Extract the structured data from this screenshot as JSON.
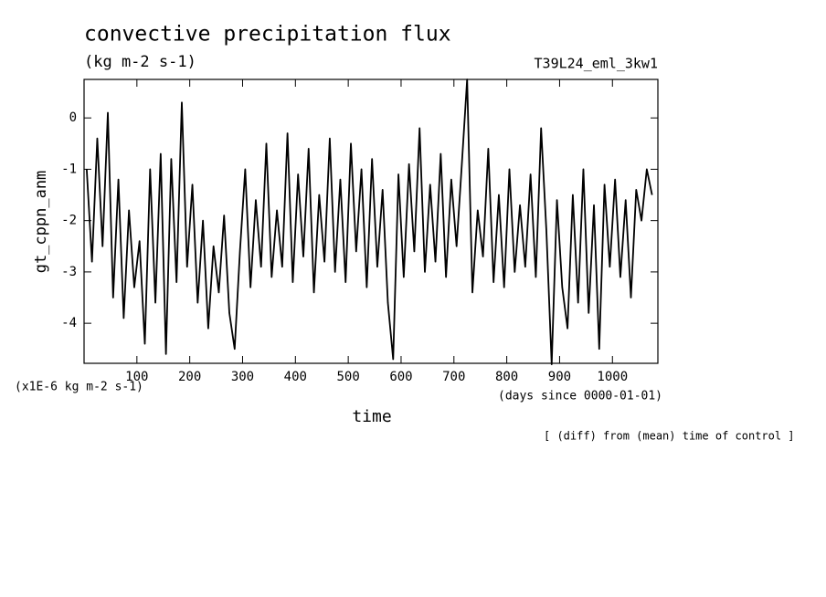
{
  "chart_data": {
    "type": "line",
    "title": "convective precipitation flux",
    "subtitle": "(kg m-2 s-1)",
    "run_label": "T39L24_eml_3kw1",
    "y_label": "gt_cppn_anm",
    "y_unit": "(x1E-6 kg m-2 s-1)",
    "x_label": "time",
    "x_unit": "(days since 0000-01-01)",
    "note": "[ (diff) from (mean) time of control ]",
    "color": "#000000",
    "xlim": [
      0,
      1086
    ],
    "ylim": [
      -4.78,
      0.75
    ],
    "xticks": [
      100,
      200,
      300,
      400,
      500,
      600,
      700,
      800,
      900,
      1000
    ],
    "yticks": [
      -4,
      -3,
      -2,
      -1,
      0
    ],
    "x": [
      5,
      15,
      25,
      35,
      45,
      55,
      65,
      75,
      85,
      95,
      105,
      115,
      125,
      135,
      145,
      155,
      165,
      175,
      185,
      195,
      205,
      215,
      225,
      235,
      245,
      255,
      265,
      275,
      285,
      295,
      305,
      315,
      325,
      335,
      345,
      355,
      365,
      375,
      385,
      395,
      405,
      415,
      425,
      435,
      445,
      455,
      465,
      475,
      485,
      495,
      505,
      515,
      525,
      535,
      545,
      555,
      565,
      575,
      585,
      595,
      605,
      615,
      625,
      635,
      645,
      655,
      665,
      675,
      685,
      695,
      705,
      715,
      725,
      735,
      745,
      755,
      765,
      775,
      785,
      795,
      805,
      815,
      825,
      835,
      845,
      855,
      865,
      875,
      885,
      895,
      905,
      915,
      925,
      935,
      945,
      955,
      965,
      975,
      985,
      995,
      1005,
      1015,
      1025,
      1035,
      1045,
      1055,
      1065,
      1075
    ],
    "values": [
      -1.0,
      -2.8,
      -0.4,
      -2.5,
      0.1,
      -3.5,
      -1.2,
      -3.9,
      -1.8,
      -3.3,
      -2.4,
      -4.4,
      -1.0,
      -3.6,
      -0.7,
      -4.6,
      -0.8,
      -3.2,
      0.3,
      -2.9,
      -1.3,
      -3.6,
      -2.0,
      -4.1,
      -2.5,
      -3.4,
      -1.9,
      -3.8,
      -4.5,
      -2.6,
      -1.0,
      -3.3,
      -1.6,
      -2.9,
      -0.5,
      -3.1,
      -1.8,
      -2.9,
      -0.3,
      -3.2,
      -1.1,
      -2.7,
      -0.6,
      -3.4,
      -1.5,
      -2.8,
      -0.4,
      -3.0,
      -1.2,
      -3.2,
      -0.5,
      -2.6,
      -1.0,
      -3.3,
      -0.8,
      -2.9,
      -1.4,
      -3.6,
      -4.7,
      -1.1,
      -3.1,
      -0.9,
      -2.6,
      -0.2,
      -3.0,
      -1.3,
      -2.8,
      -0.7,
      -3.1,
      -1.2,
      -2.5,
      -0.9,
      0.75,
      -3.4,
      -1.8,
      -2.7,
      -0.6,
      -3.2,
      -1.5,
      -3.3,
      -1.0,
      -3.0,
      -1.7,
      -2.9,
      -1.1,
      -3.1,
      -0.2,
      -2.2,
      -4.8,
      -1.6,
      -3.3,
      -4.1,
      -1.5,
      -3.6,
      -1.0,
      -3.8,
      -1.7,
      -4.5,
      -1.3,
      -2.9,
      -1.2,
      -3.1,
      -1.6,
      -3.5,
      -1.4,
      -2.0,
      -1.0,
      -1.5
    ]
  }
}
